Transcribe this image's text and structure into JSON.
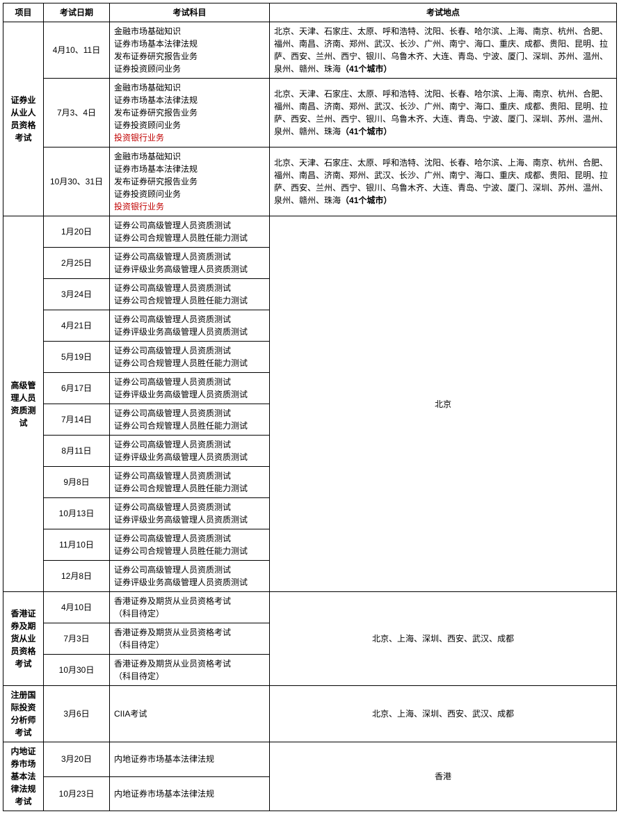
{
  "headers": {
    "project": "项目",
    "date": "考试日期",
    "subject": "考试科目",
    "location": "考试地点"
  },
  "strings": {
    "cities_suffix_bold": "（41个城市）"
  },
  "sections": [
    {
      "project": "证券业从业人员资格考试",
      "location_merged": false,
      "rows": [
        {
          "date": "4月10、11日",
          "subjects": [
            {
              "text": "金融市场基础知识"
            },
            {
              "text": "证券市场基本法律法规"
            },
            {
              "text": "发布证券研究报告业务"
            },
            {
              "text": "证券投资顾问业务"
            }
          ],
          "location_parts": [
            {
              "text": "北京、天津、石家庄、太原、呼和浩特、沈阳、长春、哈尔滨、上海、南京、杭州、合肥、福州、南昌、济南、郑州、武汉、长沙、广州、南宁、海口、重庆、成都、贵阳、昆明、拉萨、西安、兰州、西宁、银川、乌鲁木齐、大连、青岛、宁波、厦门、深圳、苏州、温州、泉州、赣州、珠海"
            },
            {
              "text": "（41个城市）",
              "bold": true
            }
          ]
        },
        {
          "date": "7月3、4日",
          "subjects": [
            {
              "text": "金融市场基础知识"
            },
            {
              "text": "证券市场基本法律法规"
            },
            {
              "text": "发布证券研究报告业务"
            },
            {
              "text": "证券投资顾问业务"
            },
            {
              "text": "投资银行业务",
              "red": true
            }
          ],
          "location_parts": [
            {
              "text": "北京、天津、石家庄、太原、呼和浩特、沈阳、长春、哈尔滨、上海、南京、杭州、合肥、福州、南昌、济南、郑州、武汉、长沙、广州、南宁、海口、重庆、成都、贵阳、昆明、拉萨、西安、兰州、西宁、银川、乌鲁木齐、大连、青岛、宁波、厦门、深圳、苏州、温州、泉州、赣州、珠海"
            },
            {
              "text": "（41个城市）",
              "bold": true
            }
          ]
        },
        {
          "date": "10月30、31日",
          "subjects": [
            {
              "text": "金融市场基础知识"
            },
            {
              "text": "证券市场基本法律法规"
            },
            {
              "text": "发布证券研究报告业务"
            },
            {
              "text": "证券投资顾问业务"
            },
            {
              "text": "投资银行业务",
              "red": true
            }
          ],
          "location_parts": [
            {
              "text": "北京、天津、石家庄、太原、呼和浩特、沈阳、长春、哈尔滨、上海、南京、杭州、合肥、福州、南昌、济南、郑州、武汉、长沙、广州、南宁、海口、重庆、成都、贵阳、昆明、拉萨、西安、兰州、西宁、银川、乌鲁木齐、大连、青岛、宁波、厦门、深圳、苏州、温州、泉州、赣州、珠海"
            },
            {
              "text": "（41个城市）",
              "bold": true
            }
          ]
        }
      ]
    },
    {
      "project": "高级管理人员资质测试",
      "location_merged": true,
      "location_center": true,
      "location_parts": [
        {
          "text": "北京"
        }
      ],
      "rows": [
        {
          "date": "1月20日",
          "subjects": [
            {
              "text": "证券公司高级管理人员资质测试"
            },
            {
              "text": "证券公司合规管理人员胜任能力测试"
            }
          ]
        },
        {
          "date": "2月25日",
          "subjects": [
            {
              "text": "证券公司高级管理人员资质测试"
            },
            {
              "text": "证券评级业务高级管理人员资质测试"
            }
          ]
        },
        {
          "date": "3月24日",
          "subjects": [
            {
              "text": "证券公司高级管理人员资质测试"
            },
            {
              "text": "证券公司合规管理人员胜任能力测试"
            }
          ]
        },
        {
          "date": "4月21日",
          "subjects": [
            {
              "text": "证券公司高级管理人员资质测试"
            },
            {
              "text": "证券评级业务高级管理人员资质测试"
            }
          ]
        },
        {
          "date": "5月19日",
          "subjects": [
            {
              "text": "证券公司高级管理人员资质测试"
            },
            {
              "text": "证券公司合规管理人员胜任能力测试"
            }
          ]
        },
        {
          "date": "6月17日",
          "subjects": [
            {
              "text": "证券公司高级管理人员资质测试"
            },
            {
              "text": "证券评级业务高级管理人员资质测试"
            }
          ]
        },
        {
          "date": "7月14日",
          "subjects": [
            {
              "text": "证券公司高级管理人员资质测试"
            },
            {
              "text": "证券公司合规管理人员胜任能力测试"
            }
          ]
        },
        {
          "date": "8月11日",
          "subjects": [
            {
              "text": "证券公司高级管理人员资质测试"
            },
            {
              "text": "证券评级业务高级管理人员资质测试"
            }
          ]
        },
        {
          "date": "9月8日",
          "subjects": [
            {
              "text": "证券公司高级管理人员资质测试"
            },
            {
              "text": "证券公司合规管理人员胜任能力测试"
            }
          ]
        },
        {
          "date": "10月13日",
          "subjects": [
            {
              "text": "证券公司高级管理人员资质测试"
            },
            {
              "text": "证券评级业务高级管理人员资质测试"
            }
          ]
        },
        {
          "date": "11月10日",
          "subjects": [
            {
              "text": "证券公司高级管理人员资质测试"
            },
            {
              "text": "证券公司合规管理人员胜任能力测试"
            }
          ]
        },
        {
          "date": "12月8日",
          "subjects": [
            {
              "text": "证券公司高级管理人员资质测试"
            },
            {
              "text": "证券评级业务高级管理人员资质测试"
            }
          ]
        }
      ]
    },
    {
      "project": "香港证券及期货从业员资格考试",
      "location_merged": true,
      "location_center": true,
      "location_parts": [
        {
          "text": "北京、上海、深圳、西安、武汉、成都"
        }
      ],
      "rows": [
        {
          "date": "4月10日",
          "subjects": [
            {
              "text": "香港证券及期货从业员资格考试"
            },
            {
              "text": "（科目待定）"
            }
          ]
        },
        {
          "date": "7月3日",
          "subjects": [
            {
              "text": "香港证券及期货从业员资格考试"
            },
            {
              "text": "（科目待定）"
            }
          ]
        },
        {
          "date": "10月30日",
          "subjects": [
            {
              "text": "香港证券及期货从业员资格考试"
            },
            {
              "text": "（科目待定）"
            }
          ]
        }
      ]
    },
    {
      "project": "注册国际投资分析师考试",
      "location_merged": true,
      "location_center": true,
      "location_parts": [
        {
          "text": "北京、上海、深圳、西安、武汉、成都"
        }
      ],
      "rows": [
        {
          "date": "3月6日",
          "subjects": [
            {
              "text": "CIIA考试"
            }
          ]
        }
      ]
    },
    {
      "project": "内地证券市场基本法律法规考试",
      "location_merged": true,
      "location_center": true,
      "location_parts": [
        {
          "text": "香港"
        }
      ],
      "rows": [
        {
          "date": "3月20日",
          "subjects": [
            {
              "text": "内地证券市场基本法律法规"
            }
          ]
        },
        {
          "date": "10月23日",
          "subjects": [
            {
              "text": "内地证券市场基本法律法规"
            }
          ]
        }
      ]
    }
  ]
}
